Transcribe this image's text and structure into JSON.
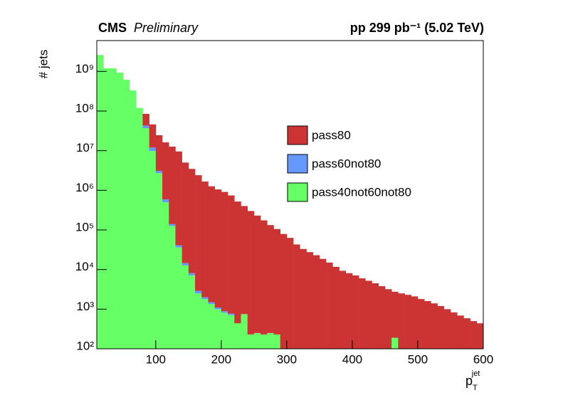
{
  "chart_data": {
    "type": "histogram",
    "stacked": true,
    "log_y": true,
    "title": {
      "experiment": "CMS",
      "status": "Preliminary",
      "right": "pp 299 pb⁻¹ (5.02 TeV)"
    },
    "y_label": "# jets",
    "x_label": {
      "text": "p",
      "subscript": "T",
      "superscript": "jet"
    },
    "bins": [
      10,
      20,
      30,
      40,
      50,
      60,
      70,
      80,
      90,
      100,
      110,
      120,
      130,
      140,
      150,
      160,
      170,
      180,
      190,
      200,
      210,
      220,
      230,
      240,
      250,
      260,
      270,
      280,
      290,
      300,
      310,
      320,
      330,
      340,
      350,
      360,
      370,
      380,
      390,
      400,
      410,
      420,
      430,
      440,
      450,
      460,
      470,
      480,
      490,
      500,
      510,
      520,
      530,
      540,
      550,
      560,
      570,
      580,
      590,
      600
    ],
    "series": [
      {
        "name": "pass80",
        "color": "#cc3333",
        "values": [
          0,
          0,
          0,
          0,
          0,
          0,
          0,
          42000000,
          34000000,
          21400000,
          15600000,
          12500000,
          9500000,
          5000000,
          3460000,
          2400000,
          1660000,
          1260000,
          1050000,
          910000,
          740000,
          520000,
          400000,
          300000,
          230000,
          174000,
          132000,
          105000,
          79000,
          63000,
          43000,
          33000,
          27500,
          23000,
          18600,
          15000,
          11700,
          9300,
          8100,
          7100,
          6000,
          5200,
          4500,
          3800,
          3200,
          2560,
          2500,
          2300,
          2100,
          1800,
          1600,
          1400,
          1200,
          1000,
          830,
          690,
          590,
          500,
          440
        ]
      },
      {
        "name": "pass60not80",
        "color": "#6699ff",
        "values": [
          0,
          0,
          0,
          0,
          0,
          0,
          0,
          6000000,
          2200000,
          400000,
          90000,
          14000,
          5000,
          1800,
          1000,
          400,
          200,
          150,
          100,
          80,
          60,
          0,
          0,
          0,
          0,
          0,
          0,
          0,
          0,
          0,
          0,
          0,
          0,
          0,
          0,
          0,
          0,
          0,
          0,
          0,
          0,
          0,
          0,
          0,
          0,
          0,
          0,
          0,
          0,
          0,
          0,
          0,
          0,
          0,
          0,
          0,
          0,
          0,
          0
        ]
      },
      {
        "name": "pass40not60not80",
        "color": "#66ff66",
        "values": [
          2600000000,
          1200000000,
          1200000000,
          930000000,
          620000000,
          330000000,
          120000000,
          37000000,
          9800000,
          2700000,
          500000,
          126000,
          36000,
          12700,
          7100,
          2500,
          1800,
          1350,
          1000,
          810,
          710,
          440,
          750,
          230,
          250,
          230,
          250,
          230,
          0,
          0,
          0,
          0,
          0,
          0,
          0,
          0,
          0,
          0,
          0,
          0,
          0,
          0,
          0,
          0,
          0,
          190,
          0,
          0,
          0,
          0,
          0,
          0,
          0,
          0,
          0,
          0,
          0,
          0,
          0
        ]
      }
    ],
    "xlim": [
      10,
      600
    ],
    "xticks": [
      100,
      200,
      300,
      400,
      500,
      600
    ],
    "ylim": [
      100,
      6000000000
    ],
    "yticks": [
      {
        "value": 100,
        "label": "10²"
      },
      {
        "value": 1000,
        "label": "10³"
      },
      {
        "value": 10000,
        "label": "10⁴"
      },
      {
        "value": 100000,
        "label": "10⁵"
      },
      {
        "value": 1000000,
        "label": "10⁶"
      },
      {
        "value": 10000000,
        "label": "10⁷"
      },
      {
        "value": 100000000,
        "label": "10⁸"
      },
      {
        "value": 1000000000,
        "label": "10⁹"
      }
    ],
    "legend": "center-right"
  }
}
